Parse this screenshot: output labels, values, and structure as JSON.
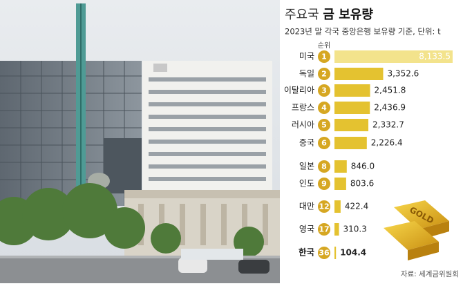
{
  "chart_data": {
    "type": "bar",
    "orientation": "horizontal",
    "title": [
      "주요국",
      "금 보유량"
    ],
    "subtitle": "2023년 말 각국 중앙은행 보유량 기준, 단위: t",
    "rank_header": "순위",
    "categories": [
      "미국",
      "독일",
      "이탈리아",
      "프랑스",
      "러시아",
      "중국",
      "일본",
      "인도",
      "대만",
      "영국",
      "한국"
    ],
    "ranks": [
      1,
      2,
      3,
      4,
      5,
      6,
      8,
      9,
      12,
      17,
      36
    ],
    "values": [
      8133.5,
      3352.6,
      2451.8,
      2436.9,
      2332.7,
      2226.4,
      846.0,
      803.6,
      422.4,
      310.3,
      104.4
    ],
    "value_labels": [
      "8,133.5",
      "3,352.6",
      "2,451.8",
      "2,436.9",
      "2,332.7",
      "2,226.4",
      "846.0",
      "803.6",
      "422.4",
      "310.3",
      "104.4"
    ],
    "colors": [
      "#f3e38c",
      "#e4c230",
      "#e4c230",
      "#e4c230",
      "#e4c230",
      "#e4c230",
      "#e4c230",
      "#e4c230",
      "#e4c230",
      "#e4c230",
      "#e4c230"
    ],
    "rank_color": "#d6a722",
    "highlight": "한국",
    "icon_text": "GOLD",
    "source": "자료: 세계금위원회"
  }
}
